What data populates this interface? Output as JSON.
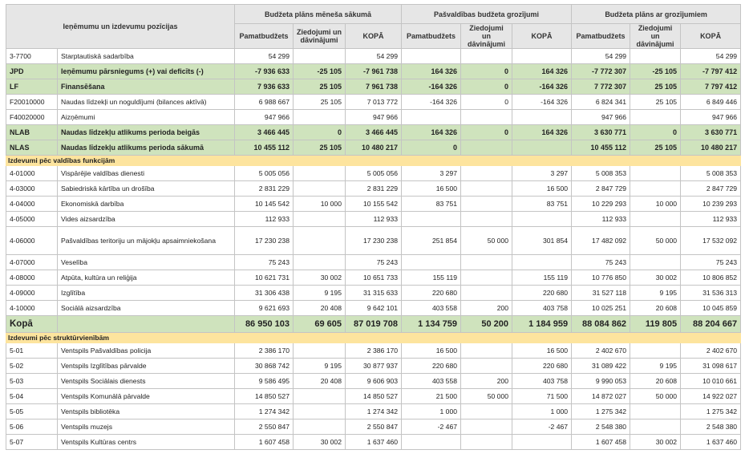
{
  "header": {
    "title": "Ieņēmumu un izdevumu pozīcijas",
    "groups": [
      "Budžeta plāns mēneša sākumā",
      "Pašvaldības budžeta grozījumi",
      "Budžeta plāns ar grozījumiem"
    ],
    "subcolumns": [
      "Pamatbudžets",
      "Ziedojumi un dāvinājumi",
      "KOPĀ"
    ]
  },
  "rows": [
    {
      "type": "plain",
      "code": "3-7700",
      "name": "Starptautiskā sadarbība",
      "vals": [
        "54 299",
        "",
        "54 299",
        "",
        "",
        "",
        "54 299",
        "",
        "54 299"
      ]
    },
    {
      "type": "hl",
      "code": "JPD",
      "name": "Ieņēmumu pārsniegums (+) vai deficīts (-)",
      "vals": [
        "-7 936 633",
        "-25 105",
        "-7 961 738",
        "164 326",
        "0",
        "164 326",
        "-7 772 307",
        "-25 105",
        "-7 797 412"
      ]
    },
    {
      "type": "hl",
      "code": "LF",
      "name": "Finansēšana",
      "vals": [
        "7 936 633",
        "25 105",
        "7 961 738",
        "-164 326",
        "0",
        "-164 326",
        "7 772 307",
        "25 105",
        "7 797 412"
      ]
    },
    {
      "type": "plain",
      "code": "F20010000",
      "name": "Naudas līdzekļi un noguldījumi (bilances aktīvā)",
      "vals": [
        "6 988 667",
        "25 105",
        "7 013 772",
        "-164 326",
        "0",
        "-164 326",
        "6 824 341",
        "25 105",
        "6 849 446"
      ]
    },
    {
      "type": "plain",
      "code": "F40020000",
      "name": "Aizņēmumi",
      "vals": [
        "947 966",
        "",
        "947 966",
        "",
        "",
        "",
        "947 966",
        "",
        "947 966"
      ]
    },
    {
      "type": "hl",
      "code": "NLAB",
      "name": "Naudas līdzekļu atlikums perioda beigās",
      "vals": [
        "3 466 445",
        "0",
        "3 466 445",
        "164 326",
        "0",
        "164 326",
        "3 630 771",
        "0",
        "3 630 771"
      ]
    },
    {
      "type": "hl",
      "code": "NLAS",
      "name": "Naudas līdzekļu atlikums perioda sākumā",
      "vals": [
        "10 455 112",
        "25 105",
        "10 480 217",
        "0",
        "",
        "",
        "10 455 112",
        "25 105",
        "10 480 217"
      ]
    },
    {
      "type": "sec",
      "name": "Izdevumi pēc valdības funkcijām"
    },
    {
      "type": "plain",
      "code": "4-01000",
      "name": "Vispārējie valdības dienesti",
      "vals": [
        "5 005 056",
        "",
        "5 005 056",
        "3 297",
        "",
        "3 297",
        "5 008 353",
        "",
        "5 008 353"
      ]
    },
    {
      "type": "plain",
      "code": "4-03000",
      "name": "Sabiedriskā kārtība un drošība",
      "vals": [
        "2 831 229",
        "",
        "2 831 229",
        "16 500",
        "",
        "16 500",
        "2 847 729",
        "",
        "2 847 729"
      ]
    },
    {
      "type": "plain",
      "code": "4-04000",
      "name": "Ekonomiskā darbība",
      "vals": [
        "10 145 542",
        "10 000",
        "10 155 542",
        "83 751",
        "",
        "83 751",
        "10 229 293",
        "10 000",
        "10 239 293"
      ]
    },
    {
      "type": "plain",
      "code": "4-05000",
      "name": "Vides aizsardzība",
      "vals": [
        "112 933",
        "",
        "112 933",
        "",
        "",
        "",
        "112 933",
        "",
        "112 933"
      ]
    },
    {
      "type": "tall",
      "code": "4-06000",
      "name": "Pašvaldības teritoriju un mājokļu apsaimniekošana",
      "vals": [
        "17 230 238",
        "",
        "17 230 238",
        "251 854",
        "50 000",
        "301 854",
        "17 482 092",
        "50 000",
        "17 532 092"
      ]
    },
    {
      "type": "plain",
      "code": "4-07000",
      "name": "Veselība",
      "vals": [
        "75 243",
        "",
        "75 243",
        "",
        "",
        "",
        "75 243",
        "",
        "75 243"
      ]
    },
    {
      "type": "plain",
      "code": "4-08000",
      "name": "Atpūta, kultūra un reliģija",
      "vals": [
        "10 621 731",
        "30 002",
        "10 651 733",
        "155 119",
        "",
        "155 119",
        "10 776 850",
        "30 002",
        "10 806 852"
      ]
    },
    {
      "type": "plain",
      "code": "4-09000",
      "name": "Izglītība",
      "vals": [
        "31 306 438",
        "9 195",
        "31 315 633",
        "220 680",
        "",
        "220 680",
        "31 527 118",
        "9 195",
        "31 536 313"
      ]
    },
    {
      "type": "plain",
      "code": "4-10000",
      "name": "Sociālā aizsardzība",
      "vals": [
        "9 621 693",
        "20 408",
        "9 642 101",
        "403 558",
        "200",
        "403 758",
        "10 025 251",
        "20 608",
        "10 045 859"
      ]
    },
    {
      "type": "total",
      "code": "Kopā",
      "name": "",
      "vals": [
        "86 950 103",
        "69 605",
        "87 019 708",
        "1 134 759",
        "50 200",
        "1 184 959",
        "88 084 862",
        "119 805",
        "88 204 667"
      ]
    },
    {
      "type": "sec",
      "name": "Izdevumi pēc struktūrvienībām"
    },
    {
      "type": "plain",
      "code": "5-01",
      "name": "Ventspils Pašvaldības policija",
      "vals": [
        "2 386 170",
        "",
        "2 386 170",
        "16 500",
        "",
        "16 500",
        "2 402 670",
        "",
        "2 402 670"
      ]
    },
    {
      "type": "plain",
      "code": "5-02",
      "name": "Ventspils Izglītības pārvalde",
      "vals": [
        "30 868 742",
        "9 195",
        "30 877 937",
        "220 680",
        "",
        "220 680",
        "31 089 422",
        "9 195",
        "31 098 617"
      ]
    },
    {
      "type": "plain",
      "code": "5-03",
      "name": "Ventspils Sociālais dienests",
      "vals": [
        "9 586 495",
        "20 408",
        "9 606 903",
        "403 558",
        "200",
        "403 758",
        "9 990 053",
        "20 608",
        "10 010 661"
      ]
    },
    {
      "type": "plain",
      "code": "5-04",
      "name": "Ventspils Komunālā pārvalde",
      "vals": [
        "14 850 527",
        "",
        "14 850 527",
        "21 500",
        "50 000",
        "71 500",
        "14 872 027",
        "50 000",
        "14 922 027"
      ]
    },
    {
      "type": "plain",
      "code": "5-05",
      "name": "Ventspils bibliotēka",
      "vals": [
        "1 274 342",
        "",
        "1 274 342",
        "1 000",
        "",
        "1 000",
        "1 275 342",
        "",
        "1 275 342"
      ]
    },
    {
      "type": "plain",
      "code": "5-06",
      "name": "Ventspils muzejs",
      "vals": [
        "2 550 847",
        "",
        "2 550 847",
        "-2 467",
        "",
        "-2 467",
        "2 548 380",
        "",
        "2 548 380"
      ]
    },
    {
      "type": "plain",
      "code": "5-07",
      "name": "Ventspils Kultūras centrs",
      "vals": [
        "1 607 458",
        "30 002",
        "1 637 460",
        "",
        "",
        "",
        "1 607 458",
        "30 002",
        "1 637 460"
      ]
    }
  ]
}
